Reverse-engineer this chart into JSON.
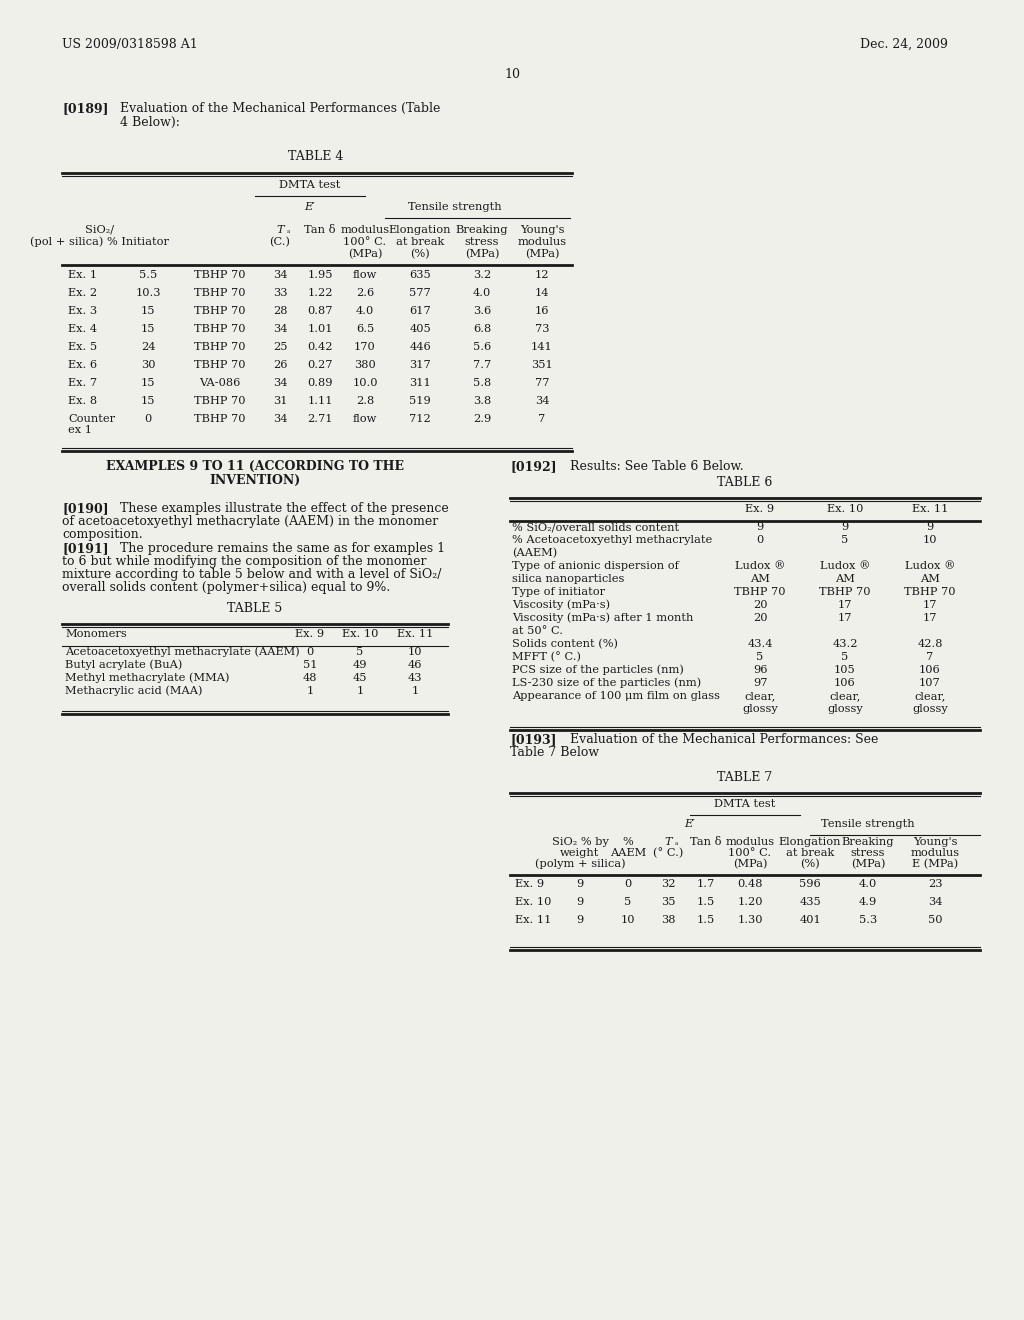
{
  "bg_color": "#f0f0eb",
  "header_left": "US 2009/0318598 A1",
  "header_right": "Dec. 24, 2009",
  "page_number": "10",
  "para189_label": "[0189]",
  "para189_text": "Evaluation of the Mechanical Performances (Table\n4 Below):",
  "table4_title": "TABLE 4",
  "table4_dmta": "DMTA test",
  "table4_e_prime": "E′",
  "table4_tensile": "Tensile strength",
  "table4_rows": [
    [
      "Ex. 1",
      "5.5",
      "TBHP 70",
      "34",
      "1.95",
      "flow",
      "635",
      "3.2",
      "12"
    ],
    [
      "Ex. 2",
      "10.3",
      "TBHP 70",
      "33",
      "1.22",
      "2.6",
      "577",
      "4.0",
      "14"
    ],
    [
      "Ex. 3",
      "15",
      "TBHP 70",
      "28",
      "0.87",
      "4.0",
      "617",
      "3.6",
      "16"
    ],
    [
      "Ex. 4",
      "15",
      "TBHP 70",
      "34",
      "1.01",
      "6.5",
      "405",
      "6.8",
      "73"
    ],
    [
      "Ex. 5",
      "24",
      "TBHP 70",
      "25",
      "0.42",
      "170",
      "446",
      "5.6",
      "141"
    ],
    [
      "Ex. 6",
      "30",
      "TBHP 70",
      "26",
      "0.27",
      "380",
      "317",
      "7.7",
      "351"
    ],
    [
      "Ex. 7",
      "15",
      "VA-086",
      "34",
      "0.89",
      "10.0",
      "311",
      "5.8",
      "77"
    ],
    [
      "Ex. 8",
      "15",
      "TBHP 70",
      "31",
      "1.11",
      "2.8",
      "519",
      "3.8",
      "34"
    ],
    [
      "Counter",
      "0",
      "TBHP 70",
      "34",
      "2.71",
      "flow",
      "712",
      "2.9",
      "7"
    ]
  ],
  "examples_title": "EXAMPLES 9 TO 11 (ACCORDING TO THE\nINVENTION)",
  "para190_label": "[0190]",
  "para190_line1": "These examples illustrate the effect of the presence",
  "para190_line2": "of acetoacetoxyethyl methacrylate (AAEM) in the monomer",
  "para190_line3": "composition.",
  "para191_label": "[0191]",
  "para191_line1": "The procedure remains the same as for examples 1",
  "para191_line2": "to 6 but while modifying the composition of the monomer",
  "para191_line3": "mixture according to table 5 below and with a level of SiO₂/",
  "para191_line4": "overall solids content (polymer+silica) equal to 9%.",
  "table5_title": "TABLE 5",
  "table5_rows": [
    [
      "Acetoacetoxyethyl methacrylate (AAEM)",
      "0",
      "5",
      "10"
    ],
    [
      "Butyl acrylate (BuA)",
      "51",
      "49",
      "46"
    ],
    [
      "Methyl methacrylate (MMA)",
      "48",
      "45",
      "43"
    ],
    [
      "Methacrylic acid (MAA)",
      "1",
      "1",
      "1"
    ]
  ],
  "para192_label": "[0192]",
  "para192_text": "Results: See Table 6 Below.",
  "table6_title": "TABLE 6",
  "table6_rows": [
    [
      "% SiO₂/overall solids content",
      "9",
      "9",
      "9"
    ],
    [
      "% Acetoacetoxyethyl methacrylate",
      "0",
      "5",
      "10"
    ],
    [
      "(AAEM)",
      "",
      "",
      ""
    ],
    [
      "Type of anionic dispersion of",
      "Ludox ®",
      "Ludox ®",
      "Ludox ®"
    ],
    [
      "silica nanoparticles",
      "AM",
      "AM",
      "AM"
    ],
    [
      "Type of initiator",
      "TBHP 70",
      "TBHP 70",
      "TBHP 70"
    ],
    [
      "Viscosity (mPa·s)",
      "20",
      "17",
      "17"
    ],
    [
      "Viscosity (mPa·s) after 1 month",
      "20",
      "17",
      "17"
    ],
    [
      "at 50° C.",
      "",
      "",
      ""
    ],
    [
      "Solids content (%)",
      "43.4",
      "43.2",
      "42.8"
    ],
    [
      "MFFT (° C.)",
      "5",
      "5",
      "7"
    ],
    [
      "PCS size of the particles (nm)",
      "96",
      "105",
      "106"
    ],
    [
      "LS-230 size of the particles (nm)",
      "97",
      "106",
      "107"
    ],
    [
      "Appearance of 100 μm film on glass",
      "clear,",
      "clear,",
      "clear,"
    ],
    [
      "",
      "glossy",
      "glossy",
      "glossy"
    ]
  ],
  "para193_label": "[0193]",
  "para193_line1": "Evaluation of the Mechanical Performances: See",
  "para193_line2": "Table 7 Below",
  "table7_title": "TABLE 7",
  "table7_dmta": "DMTA test",
  "table7_e_prime": "E′",
  "table7_tensile": "Tensile strength",
  "table7_rows": [
    [
      "Ex. 9",
      "9",
      "0",
      "32",
      "1.7",
      "0.48",
      "596",
      "4.0",
      "23"
    ],
    [
      "Ex. 10",
      "9",
      "5",
      "35",
      "1.5",
      "1.20",
      "435",
      "4.9",
      "34"
    ],
    [
      "Ex. 11",
      "9",
      "10",
      "38",
      "1.5",
      "1.30",
      "401",
      "5.3",
      "50"
    ]
  ]
}
